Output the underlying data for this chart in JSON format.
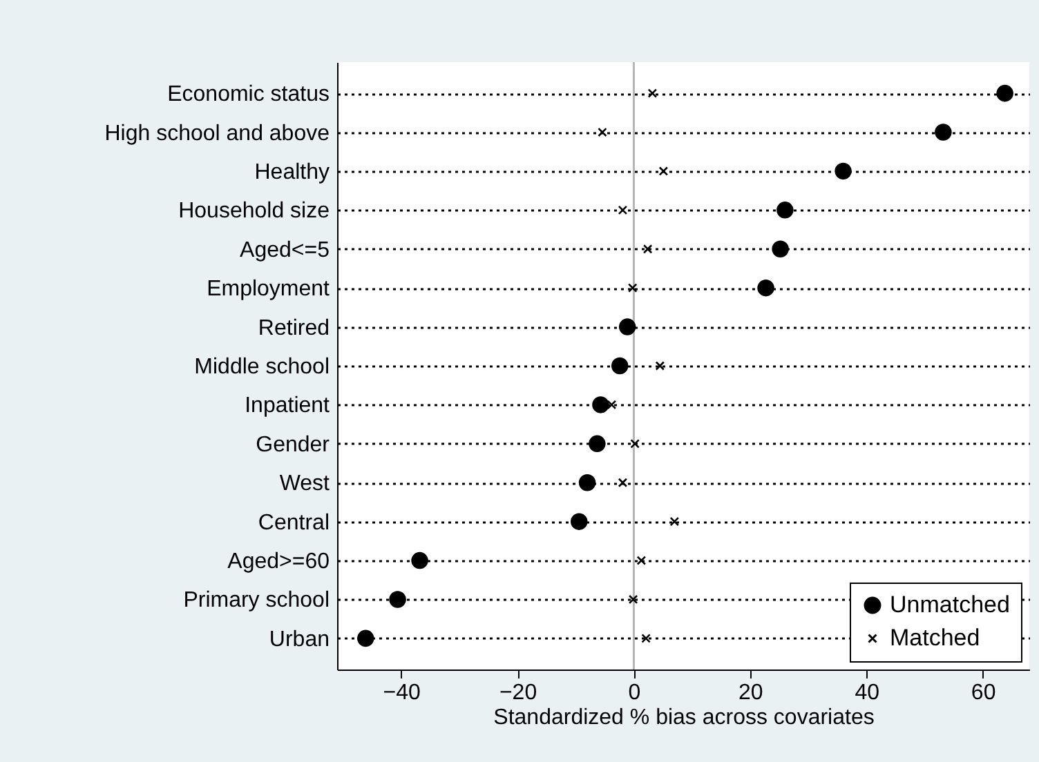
{
  "chart_data": {
    "type": "scatter",
    "orientation": "horizontal",
    "xlabel": "Standardized % bias across covariates",
    "categories": [
      "Economic status",
      "High school and above",
      "Healthy",
      "Household size",
      "Aged<=5",
      "Employment",
      "Retired",
      "Middle school",
      "Inpatient",
      "Gender",
      "West",
      "Central",
      "Aged>=60",
      "Primary school",
      "Urban"
    ],
    "xlim": [
      -51,
      68
    ],
    "xticks": [
      -40,
      -20,
      0,
      20,
      40,
      60
    ],
    "grid": "y",
    "legend": "bottom right",
    "ref_lines": [
      {
        "axis": "x",
        "value": 0,
        "color": "#b4b4b4"
      }
    ],
    "series": [
      {
        "name": "Unmatched",
        "color": "#000000",
        "marker": "circle",
        "values": [
          63.8,
          53.2,
          36.0,
          26.0,
          25.2,
          22.7,
          -1.1,
          -2.4,
          -5.7,
          -6.3,
          -8.0,
          -9.4,
          -36.8,
          -40.6,
          -46.1
        ]
      },
      {
        "name": "Matched",
        "color": "#000000",
        "marker": "cross",
        "values": [
          3.2,
          -5.4,
          5.1,
          -1.9,
          2.4,
          -0.2,
          null,
          4.5,
          -3.8,
          0.2,
          -1.9,
          7.0,
          1.3,
          -0.1,
          2.1
        ]
      }
    ]
  }
}
